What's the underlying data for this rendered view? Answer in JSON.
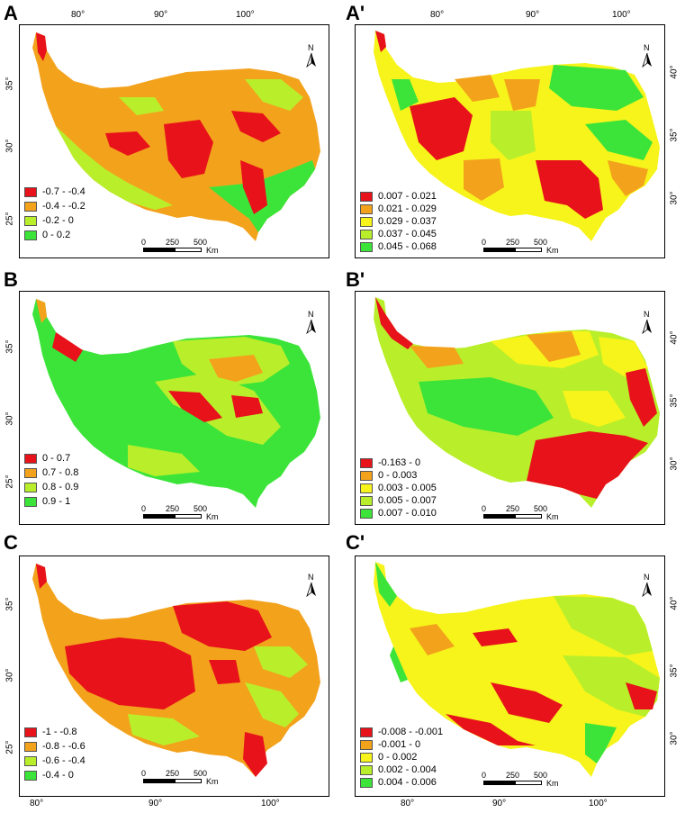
{
  "colors": {
    "red": "#e8121a",
    "orange": "#f3a21c",
    "yellow": "#f6f41a",
    "yellowgreen": "#b9ef2a",
    "green": "#3ce43a"
  },
  "panels": [
    {
      "letter": "A",
      "top_lon": [
        "80°",
        "90°",
        "100°"
      ],
      "left_lat": [
        "35°",
        "30°",
        "25°"
      ],
      "right_lat": [],
      "bottom_lon": [],
      "legend": [
        {
          "label": "-0.7 - -0.4",
          "color": "#e8121a"
        },
        {
          "label": "-0.4 - -0.2",
          "color": "#f3a21c"
        },
        {
          "label": "-0.2 - 0",
          "color": "#b9ef2a"
        },
        {
          "label": "0 - 0.2",
          "color": "#3ce43a"
        }
      ],
      "scale": {
        "n0": "0",
        "n1": "250",
        "n2": "500",
        "unit": "Km"
      },
      "north": "N"
    },
    {
      "letter": "A'",
      "top_lon": [
        "80°",
        "90°",
        "100°"
      ],
      "left_lat": [],
      "right_lat": [
        "40°",
        "35°",
        "30°"
      ],
      "bottom_lon": [],
      "legend": [
        {
          "label": "0.007 - 0.021",
          "color": "#e8121a"
        },
        {
          "label": "0.021 - 0.029",
          "color": "#f3a21c"
        },
        {
          "label": "0.029 - 0.037",
          "color": "#f6f41a"
        },
        {
          "label": "0.037 - 0.045",
          "color": "#b9ef2a"
        },
        {
          "label": "0.045 - 0.068",
          "color": "#3ce43a"
        }
      ],
      "scale": {
        "n0": "0",
        "n1": "250",
        "n2": "500",
        "unit": "Km"
      },
      "north": "N"
    },
    {
      "letter": "B",
      "top_lon": [],
      "left_lat": [
        "35°",
        "30°",
        "25°"
      ],
      "right_lat": [],
      "bottom_lon": [],
      "legend": [
        {
          "label": "0 - 0.7",
          "color": "#e8121a"
        },
        {
          "label": "0.7 - 0.8",
          "color": "#f3a21c"
        },
        {
          "label": "0.8 - 0.9",
          "color": "#b9ef2a"
        },
        {
          "label": "0.9 - 1",
          "color": "#3ce43a"
        }
      ],
      "scale": {
        "n0": "0",
        "n1": "250",
        "n2": "500",
        "unit": "Km"
      },
      "north": "N"
    },
    {
      "letter": "B'",
      "top_lon": [],
      "left_lat": [],
      "right_lat": [
        "40°",
        "35°",
        "30°"
      ],
      "bottom_lon": [],
      "legend": [
        {
          "label": "-0.163 - 0",
          "color": "#e8121a"
        },
        {
          "label": "0 - 0.003",
          "color": "#f3a21c"
        },
        {
          "label": "0.003 - 0.005",
          "color": "#f6f41a"
        },
        {
          "label": "0.005 - 0.007",
          "color": "#b9ef2a"
        },
        {
          "label": "0.007 - 0.010",
          "color": "#3ce43a"
        }
      ],
      "scale": {
        "n0": "0",
        "n1": "250",
        "n2": "500",
        "unit": "Km"
      },
      "north": "N"
    },
    {
      "letter": "C",
      "top_lon": [],
      "left_lat": [
        "35°",
        "30°",
        "25°"
      ],
      "right_lat": [],
      "bottom_lon": [
        "80°",
        "90°",
        "100°"
      ],
      "legend": [
        {
          "label": "-1 - -0.8",
          "color": "#e8121a"
        },
        {
          "label": "-0.8 - -0.6",
          "color": "#f3a21c"
        },
        {
          "label": "-0.6 - -0.4",
          "color": "#b9ef2a"
        },
        {
          "label": "-0.4 - 0",
          "color": "#3ce43a"
        }
      ],
      "scale": {
        "n0": "0",
        "n1": "250",
        "n2": "500",
        "unit": "Km"
      },
      "north": "N"
    },
    {
      "letter": "C'",
      "top_lon": [],
      "left_lat": [],
      "right_lat": [
        "40°",
        "35°",
        "30°"
      ],
      "bottom_lon": [
        "80°",
        "90°",
        "100°"
      ],
      "legend": [
        {
          "label": "-0.008 - -0.001",
          "color": "#e8121a"
        },
        {
          "label": "-0.001 - 0",
          "color": "#f3a21c"
        },
        {
          "label": "0 - 0.002",
          "color": "#f6f41a"
        },
        {
          "label": "0.002 - 0.004",
          "color": "#b9ef2a"
        },
        {
          "label": "0.004 - 0.006",
          "color": "#3ce43a"
        }
      ],
      "scale": {
        "n0": "0",
        "n1": "250",
        "n2": "500",
        "unit": "Km"
      },
      "north": "N"
    }
  ]
}
